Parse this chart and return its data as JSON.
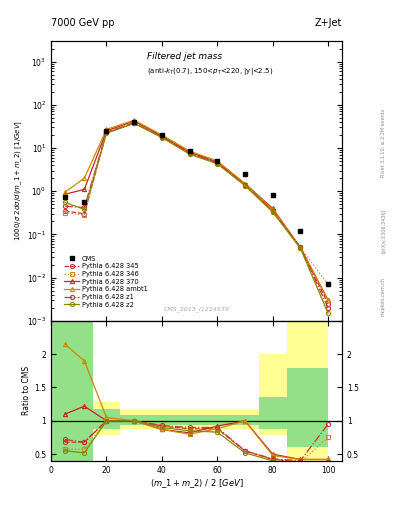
{
  "x_data": [
    5,
    12,
    20,
    30,
    40,
    50,
    60,
    70,
    80,
    90,
    100
  ],
  "cms_y": [
    0.75,
    0.55,
    25,
    40,
    20,
    8.5,
    5,
    2.5,
    0.8,
    0.12,
    0.007
  ],
  "p345_y": [
    0.35,
    0.3,
    23,
    38,
    18,
    7.5,
    4.5,
    1.4,
    0.35,
    0.05,
    0.0025
  ],
  "p346_y": [
    0.32,
    0.28,
    23,
    38,
    18,
    7.5,
    4.5,
    1.4,
    0.35,
    0.05,
    0.007
  ],
  "p370_y": [
    0.85,
    1.1,
    25,
    42,
    19,
    8.0,
    4.8,
    1.5,
    0.4,
    0.05,
    0.003
  ],
  "pambt1_y": [
    0.95,
    2.0,
    27,
    44,
    20,
    8.5,
    5.0,
    1.5,
    0.38,
    0.05,
    0.003
  ],
  "pz1_y": [
    0.45,
    0.42,
    23,
    38,
    18,
    7.5,
    4.5,
    1.4,
    0.35,
    0.05,
    0.002
  ],
  "pz2_y": [
    0.55,
    0.38,
    22,
    37,
    17.5,
    7.2,
    4.3,
    1.35,
    0.33,
    0.048,
    0.0015
  ],
  "ratio_x": [
    5,
    12,
    20,
    30,
    40,
    50,
    60,
    70,
    80,
    90,
    100
  ],
  "r345_y": [
    0.68,
    0.68,
    1.0,
    1.0,
    0.92,
    0.88,
    0.88,
    0.55,
    0.42,
    0.38,
    0.38
  ],
  "r346_y": [
    0.58,
    0.57,
    1.0,
    1.0,
    0.92,
    0.88,
    0.88,
    0.55,
    0.42,
    0.38,
    0.75
  ],
  "r370_y": [
    1.1,
    1.22,
    1.0,
    1.0,
    0.87,
    0.82,
    0.92,
    1.0,
    0.5,
    0.42,
    0.42
  ],
  "rambt1_y": [
    2.15,
    1.9,
    1.05,
    1.0,
    0.87,
    0.8,
    0.88,
    1.0,
    0.48,
    0.42,
    0.42
  ],
  "rz1_y": [
    0.72,
    0.68,
    1.0,
    1.0,
    0.93,
    0.9,
    0.9,
    0.55,
    0.43,
    0.4,
    0.95
  ],
  "rz2_y": [
    0.55,
    0.52,
    1.0,
    1.0,
    0.9,
    0.85,
    0.83,
    0.52,
    0.4,
    0.37,
    0.2
  ],
  "band_edges": [
    0,
    15,
    25,
    35,
    45,
    55,
    65,
    75,
    85,
    100
  ],
  "band_yellow_lo": [
    0.4,
    0.78,
    0.88,
    0.88,
    0.88,
    0.88,
    0.88,
    0.78,
    0.4,
    0.4
  ],
  "band_yellow_hi": [
    2.5,
    1.28,
    1.18,
    1.18,
    1.18,
    1.18,
    1.18,
    2.0,
    2.5,
    2.5
  ],
  "band_green_lo": [
    0.4,
    0.88,
    0.93,
    0.93,
    0.93,
    0.93,
    0.93,
    0.88,
    0.6,
    0.6
  ],
  "band_green_hi": [
    2.5,
    1.18,
    1.08,
    1.08,
    1.08,
    1.08,
    1.08,
    1.35,
    1.8,
    1.8
  ],
  "color_345": "#cc3333",
  "color_346": "#cc8833",
  "color_370": "#cc2222",
  "color_ambt1": "#cc8800",
  "color_z1": "#cc3333",
  "color_z2": "#888800",
  "ls_345": "--",
  "ls_346": ":",
  "ls_370": "-",
  "ls_ambt1": "-",
  "ls_z1": "-.",
  "ls_z2": "-",
  "marker_345": "o",
  "marker_346": "s",
  "marker_370": "^",
  "marker_ambt1": "^",
  "marker_z1": "o",
  "marker_z2": "o",
  "ylim_main": [
    0.001,
    3000
  ],
  "ylim_ratio": [
    0.4,
    2.5
  ],
  "xlim": [
    0,
    105
  ],
  "yticks_ratio": [
    0.5,
    1.0,
    1.5,
    2.0
  ]
}
